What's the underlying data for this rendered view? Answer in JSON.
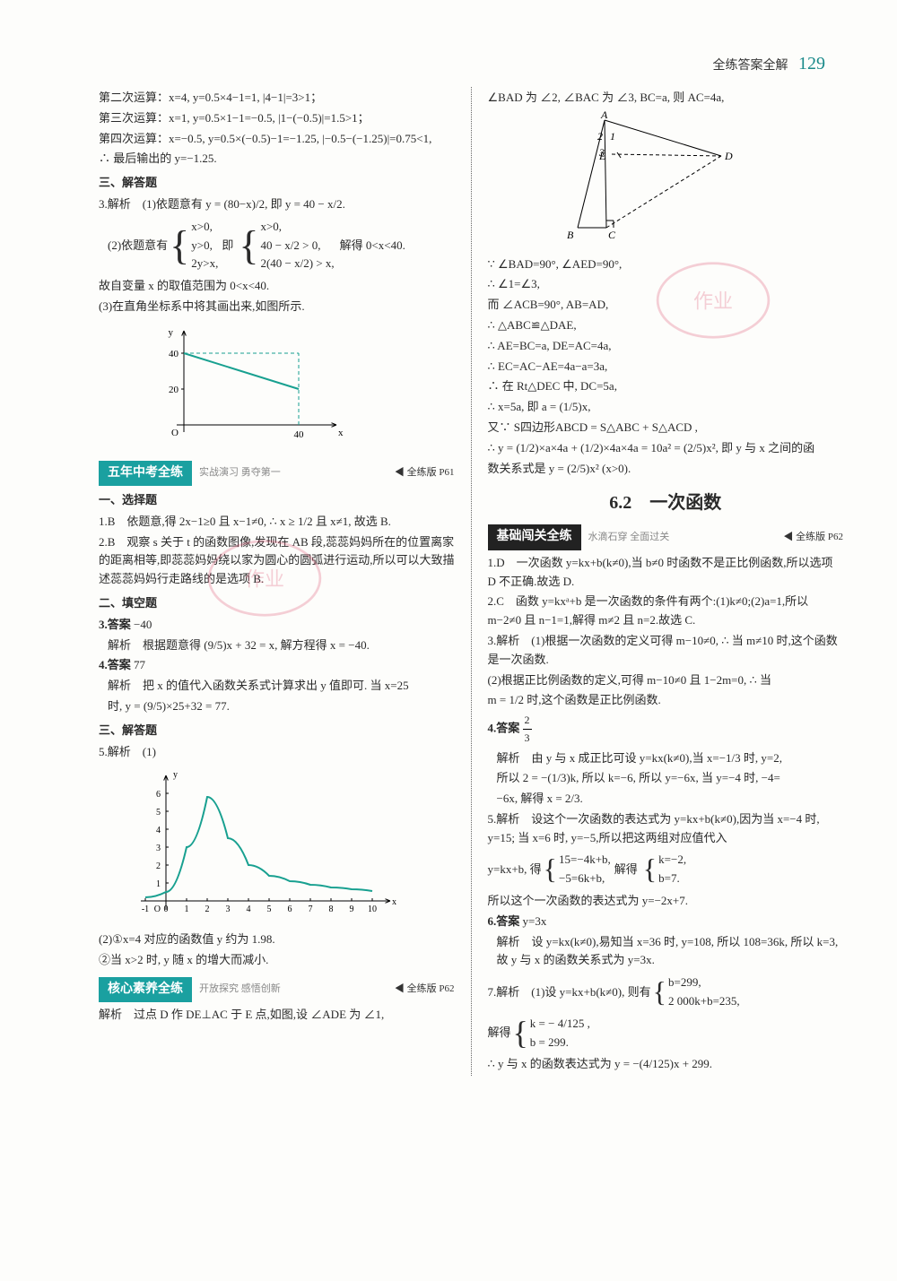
{
  "header": {
    "label": "全练答案全解",
    "page_num": "129"
  },
  "left": {
    "intro_lines": [
      "第二次运算：x=4, y=0.5×4−1=1, |4−1|=3>1；",
      "第三次运算：x=1, y=0.5×1−1=−0.5, |1−(−0.5)|=1.5>1；",
      "第四次运算：x=−0.5, y=0.5×(−0.5)−1=−1.25, |−0.5−(−1.25)|=0.75<1,",
      "∴ 最后输出的 y=−1.25."
    ],
    "sec_jieda": "三、解答题",
    "q3_lines": {
      "lead": "3.解析　(1)依题意有 y = (80−x)/2, 即 y = 40 − x/2.",
      "p2_pre": "(2)依题意有",
      "sys1": [
        "x>0,",
        "y>0,",
        "2y>x,"
      ],
      "mid": "即",
      "sys2": [
        "x>0,",
        "40 − x/2 > 0,",
        "2(40 − x/2) > x,"
      ],
      "tail": "解得 0<x<40.",
      "range": "故自变量 x 的取值范围为 0<x<40.",
      "p3": "(3)在直角坐标系中将其画出来,如图所示."
    },
    "chart1": {
      "type": "line",
      "x_range": [
        0,
        50
      ],
      "y_range": [
        0,
        45
      ],
      "y_ticks": [
        20,
        40
      ],
      "x_ticks_label": "40",
      "line_color": "#18a090",
      "dash_color": "#18a090",
      "points": [
        [
          0,
          40
        ],
        [
          40,
          20
        ]
      ],
      "axis_labels": {
        "x": "x",
        "y": "y"
      }
    },
    "banner_5year": {
      "title": "五年中考全练",
      "sub": "实战演习 勇夺第一",
      "right": "全练版 P61"
    },
    "sec_xuanze": "一、选择题",
    "q1b": "1.B　依题意,得 2x−1≥0 且 x−1≠0, ∴ x ≥ 1/2 且 x≠1, 故选 B.",
    "q2b": "2.B　观察 s 关于 t 的函数图像,发现在 AB 段,蕊蕊妈妈所在的位置离家的距离相等,即蕊蕊妈妈绕以家为圆心的圆弧进行运动,所以可以大致描述蕊蕊妈妈行走路线的是选项 B.",
    "sec_tiankong": "二、填空题",
    "q3_ans_label": "3.答案",
    "q3_ans": "−40",
    "q3_jiexi": "解析　根据题意得 (9/5)x + 32 = x, 解方程得 x = −40.",
    "q4_ans_label": "4.答案",
    "q4_ans": "77",
    "q4_jiexi_a": "解析　把 x 的值代入函数关系式计算求出 y 值即可. 当 x=25",
    "q4_jiexi_b": "时, y = (9/5)×25+32 = 77.",
    "sec_jieda2": "三、解答题",
    "q5_label": "5.解析　(1)",
    "chart2": {
      "type": "line",
      "x_range": [
        -1,
        10
      ],
      "y_range": [
        0,
        6.5
      ],
      "x_ticks": [
        -1,
        0,
        1,
        2,
        3,
        4,
        5,
        6,
        7,
        8,
        9,
        10
      ],
      "y_ticks": [
        1,
        2,
        3,
        4,
        5,
        6
      ],
      "line_color": "#18a090",
      "axis_labels": {
        "x": "x",
        "y": "y"
      },
      "points": [
        [
          -1,
          0.2
        ],
        [
          0,
          0.5
        ],
        [
          1,
          3
        ],
        [
          2,
          5.8
        ],
        [
          3,
          3.5
        ],
        [
          4,
          2
        ],
        [
          5,
          1.4
        ],
        [
          6,
          1.1
        ],
        [
          7,
          0.9
        ],
        [
          8,
          0.75
        ],
        [
          9,
          0.65
        ],
        [
          10,
          0.55
        ]
      ]
    },
    "q5_p2a": "(2)①x=4 对应的函数值 y 约为 1.98.",
    "q5_p2b": "②当 x>2 时, y 随 x 的增大而减小.",
    "banner_hexin": {
      "title": "核心素养全练",
      "sub": "开放探究  感悟创新",
      "right": "全练版 P62"
    },
    "hexin_line": "解析　过点 D 作 DE⊥AC 于 E 点,如图,设 ∠ADE 为 ∠1,"
  },
  "right": {
    "top_line": "∠BAD 为 ∠2, ∠BAC 为 ∠3, BC=a, 则 AC=4a,",
    "geom": {
      "labels": [
        "A",
        "B",
        "C",
        "D",
        "E"
      ],
      "angle_labels": [
        "1",
        "2",
        "3"
      ],
      "line_color": "#333",
      "fill": "none"
    },
    "proof_lines": [
      "∵ ∠BAD=90°, ∠AED=90°,",
      "∴ ∠1=∠3,",
      "而 ∠ACB=90°, AB=AD,",
      "∴ △ABC≌△DAE,",
      "∴ AE=BC=a, DE=AC=4a,",
      "∴ EC=AC−AE=4a−a=3a,",
      "∴ 在 Rt△DEC 中, DC=5a,",
      "∴ x=5a, 即 a = (1/5)x,",
      "又∵ S四边形ABCD = S△ABC + S△ACD ,",
      "∴ y = (1/2)×a×4a + (1/2)×4a×4a = 10a² = (2/5)x², 即 y 与 x 之间的函",
      "数关系式是 y = (2/5)x² (x>0)."
    ],
    "chapter": "6.2　一次函数",
    "banner_jichu": {
      "title": "基础闯关全练",
      "sub": "水滴石穿 全面过关",
      "right": "全练版 P62"
    },
    "r1": "1.D　一次函数 y=kx+b(k≠0),当 b≠0 时函数不是正比例函数,所以选项 D 不正确.故选 D.",
    "r2": "2.C　函数 y=kxᵃ+b 是一次函数的条件有两个:(1)k≠0;(2)a=1,所以 m−2≠0 且 n−1=1,解得 m≠2 且 n=2.故选 C.",
    "r3a": "3.解析　(1)根据一次函数的定义可得 m−10≠0, ∴ 当 m≠10 时,这个函数是一次函数.",
    "r3b": "(2)根据正比例函数的定义,可得 m−10≠0 且 1−2m=0, ∴ 当",
    "r3c": "m = 1/2 时,这个函数是正比例函数.",
    "r4_label": "4.答案",
    "r4_ans": "2/3",
    "r4_jiexi_a": "解析　由 y 与 x 成正比可设 y=kx(k≠0),当 x=−1/3 时, y=2,",
    "r4_jiexi_b": "所以 2 = −(1/3)k, 所以 k=−6, 所以 y=−6x, 当 y=−4 时, −4=",
    "r4_jiexi_c": "−6x, 解得 x = 2/3.",
    "r5a": "5.解析　设这个一次函数的表达式为 y=kx+b(k≠0),因为当 x=−4 时, y=15; 当 x=6 时, y=−5,所以把这两组对应值代入",
    "r5_pre": "y=kx+b, 得",
    "r5_sys1": [
      "15=−4k+b,",
      "−5=6k+b,"
    ],
    "r5_mid": "解得",
    "r5_sys2": [
      "k=−2,",
      "b=7."
    ],
    "r5c": "所以这个一次函数的表达式为 y=−2x+7.",
    "r6_label": "6.答案",
    "r6_ans": "y=3x",
    "r6_jiexi": "解析　设 y=kx(k≠0),易知当 x=36 时, y=108, 所以 108=36k, 所以 k=3, 故 y 与 x 的函数关系式为 y=3x.",
    "r7a_pre": "7.解析　(1)设 y=kx+b(k≠0), 则有",
    "r7a_sys": [
      "b=299,",
      "2 000k+b=235,"
    ],
    "r7b_pre": "解得",
    "r7b_sys": [
      "k = − 4/125 ,",
      "b = 299."
    ],
    "r7c": "∴ y 与 x 的函数表达式为 y = −(4/125)x + 299."
  }
}
